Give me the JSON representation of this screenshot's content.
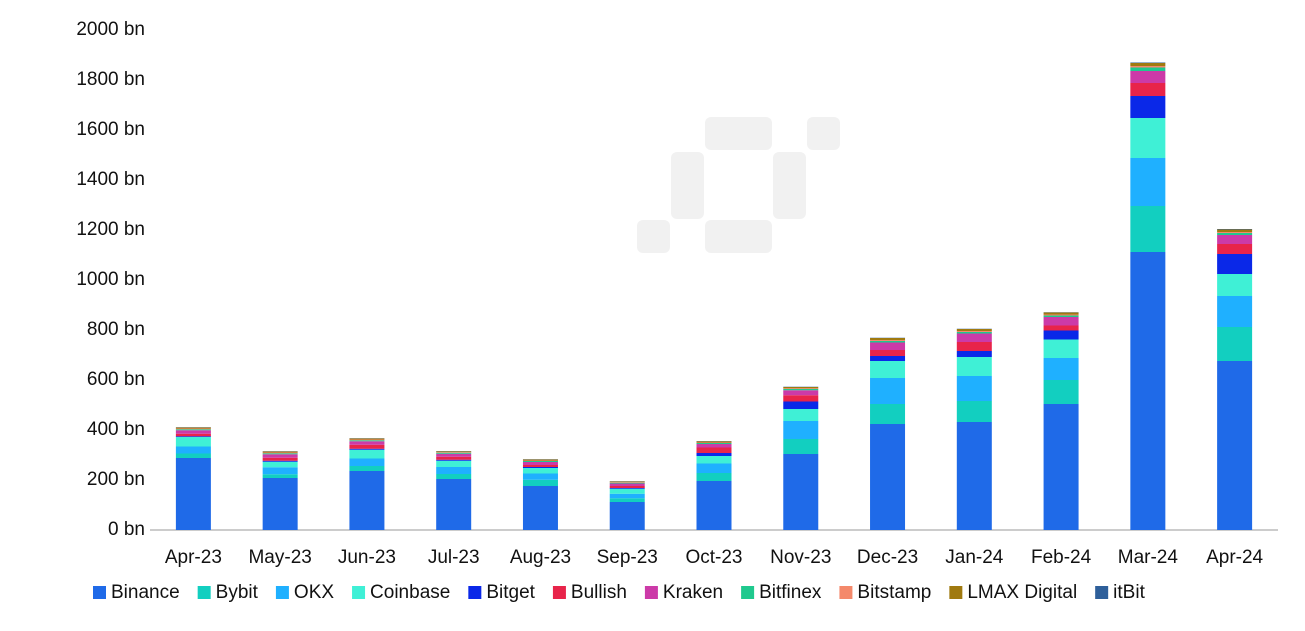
{
  "chart_data": {
    "type": "stacked_bar",
    "categories": [
      "Apr-23",
      "May-23",
      "Jun-23",
      "Jul-23",
      "Aug-23",
      "Sep-23",
      "Oct-23",
      "Nov-23",
      "Dec-23",
      "Jan-24",
      "Feb-24",
      "Mar-24",
      "Apr-24"
    ],
    "series": [
      {
        "name": "Binance",
        "color": "#1f6ae8",
        "values": [
          288,
          208,
          236,
          204,
          176,
          112,
          196,
          304,
          424,
          432,
          504,
          1112,
          676
        ]
      },
      {
        "name": "Bybit",
        "color": "#12cfc0",
        "values": [
          18,
          15,
          20,
          20,
          25,
          15,
          32,
          60,
          80,
          84,
          96,
          184,
          136
        ]
      },
      {
        "name": "OKX",
        "color": "#1fb0ff",
        "values": [
          28,
          28,
          30,
          28,
          25,
          18,
          38,
          72,
          104,
          100,
          88,
          192,
          124
        ]
      },
      {
        "name": "Coinbase",
        "color": "#3ff0d6",
        "values": [
          38,
          22,
          35,
          25,
          22,
          20,
          30,
          48,
          68,
          76,
          74,
          160,
          88
        ]
      },
      {
        "name": "Bitget",
        "color": "#0a28e8",
        "values": [
          3,
          4,
          4,
          4,
          4,
          3,
          12,
          30,
          20,
          24,
          36,
          88,
          80
        ]
      },
      {
        "name": "Bullish",
        "color": "#e8244a",
        "values": [
          10,
          12,
          16,
          12,
          8,
          8,
          22,
          25,
          24,
          36,
          20,
          52,
          40
        ]
      },
      {
        "name": "Kraken",
        "color": "#cc3aa8",
        "values": [
          14,
          14,
          14,
          12,
          12,
          10,
          14,
          20,
          30,
          34,
          34,
          48,
          36
        ]
      },
      {
        "name": "Bitfinex",
        "color": "#1fc98e",
        "values": [
          4,
          4,
          4,
          4,
          4,
          3,
          4,
          5,
          6,
          6,
          6,
          14,
          8
        ]
      },
      {
        "name": "Bitstamp",
        "color": "#f4896b",
        "values": [
          3,
          3,
          3,
          2,
          2,
          2,
          2,
          3,
          4,
          4,
          4,
          6,
          4
        ]
      },
      {
        "name": "LMAX Digital",
        "color": "#a07a10",
        "values": [
          4,
          4,
          4,
          4,
          4,
          3,
          5,
          5,
          8,
          8,
          8,
          12,
          10
        ]
      },
      {
        "name": "itBit",
        "color": "#2e5f9a",
        "values": [
          1,
          1,
          1,
          1,
          1,
          1,
          1,
          1,
          1,
          1,
          1,
          2,
          2
        ]
      }
    ],
    "ylim": [
      0,
      2000
    ],
    "yticks": [
      {
        "value": 0,
        "label": "0 bn"
      },
      {
        "value": 200,
        "label": "200 bn"
      },
      {
        "value": 400,
        "label": "400 bn"
      },
      {
        "value": 600,
        "label": "600 bn"
      },
      {
        "value": 800,
        "label": "800 bn"
      },
      {
        "value": 1000,
        "label": "1000 bn"
      },
      {
        "value": 1200,
        "label": "1200 bn"
      },
      {
        "value": 1400,
        "label": "1400 bn"
      },
      {
        "value": 1600,
        "label": "1600 bn"
      },
      {
        "value": 1800,
        "label": "1800 bn"
      },
      {
        "value": 2000,
        "label": "2000 bn"
      }
    ],
    "legend": "bottom"
  }
}
